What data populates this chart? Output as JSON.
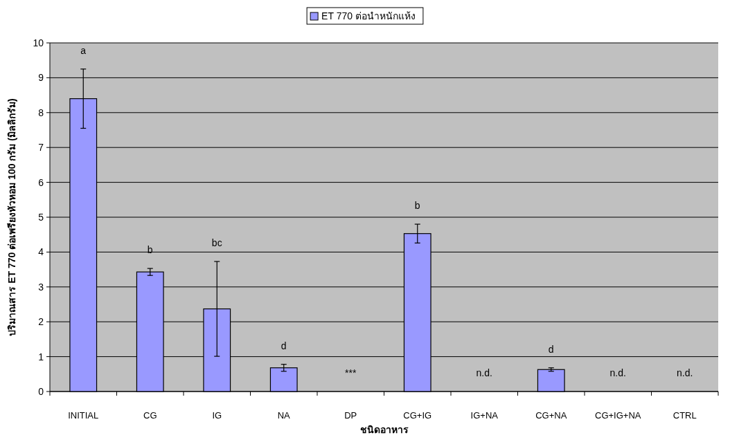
{
  "chart_data": {
    "type": "bar",
    "xlabel": "ชนิดอาหาร",
    "ylabel": "ปริมาณสาร ET 770 ต่อเพรียงหัวหอม 100 กรัม (มิลลิกรัม)",
    "categories": [
      "INITIAL",
      "CG",
      "IG",
      "NA",
      "DP",
      "CG+IG",
      "IG+NA",
      "CG+NA",
      "CG+IG+NA",
      "CTRL"
    ],
    "series": [
      {
        "name": "ET 770 ต่อนำหนักแห้ง",
        "color": "#9999ff",
        "values": [
          8.4,
          3.43,
          2.37,
          0.68,
          0,
          4.53,
          0,
          0.63,
          0,
          0
        ],
        "errors": [
          0.85,
          0.1,
          1.36,
          0.1,
          null,
          0.27,
          null,
          0.05,
          null,
          null
        ]
      }
    ],
    "ylim": [
      0,
      10
    ],
    "yticks": [
      0,
      1,
      2,
      3,
      4,
      5,
      6,
      7,
      8,
      9,
      10
    ],
    "grid": "y",
    "legend": "top",
    "annotations": [
      "a",
      "b",
      "bc",
      "d",
      "***",
      "b",
      "n.d.",
      "d",
      "n.d.",
      "n.d."
    ]
  }
}
